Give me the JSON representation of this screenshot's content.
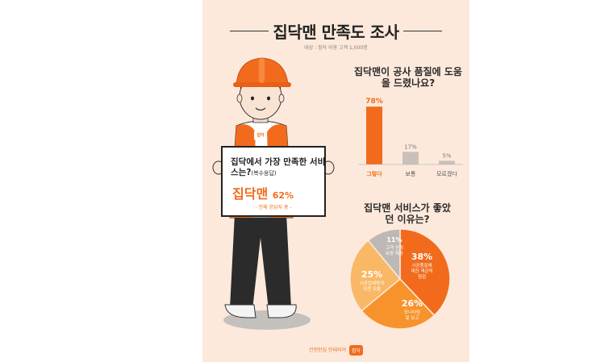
{
  "poster": {
    "title": "집닥맨 만족도 조사",
    "subtitle": "대상 : 집닥 이용 고객 1,000명",
    "footer_text": "건전안심 인테리어",
    "footer_badge": "집닥",
    "vest_badge": "집닥"
  },
  "sign": {
    "question": "집닥에서 가장 만족한 서비스는?",
    "question_suffix": "(복수응답)",
    "answer_name": "집닥맨",
    "answer_pct": "62%",
    "note": "- 전체 응답자 중 -"
  },
  "colors": {
    "accent": "#f26b1d",
    "bar_gray": "#c9c0ba",
    "background": "#fce9dc",
    "pie_colors": [
      "#f26b1d",
      "#f7932a",
      "#f9b866",
      "#bdb8b5"
    ]
  },
  "chart_data": [
    {
      "type": "bar",
      "title": "집닥맨이 공사 품질에 도움을 드렸나요?",
      "categories": [
        "그렇다",
        "보통",
        "모르겠다"
      ],
      "values": [
        78,
        17,
        5
      ],
      "value_labels": [
        "78%",
        "17%",
        "5%"
      ],
      "ylim": [
        0,
        100
      ],
      "grid": false
    },
    {
      "type": "pie",
      "title": "집닥맨 서비스가 좋았던 이유는?",
      "slices": [
        {
          "value": 38,
          "label": "38%",
          "desc": [
            "시공품질에",
            "대한 객관적",
            "점검"
          ]
        },
        {
          "value": 26,
          "label": "26%",
          "desc": [
            "모니터링",
            "및 보고"
          ]
        },
        {
          "value": 25,
          "label": "25%",
          "desc": [
            "시공업체와의",
            "의견 조율"
          ]
        },
        {
          "value": 11,
          "label": "11%",
          "desc": [
            "고객 신뢰",
            "보증 제공"
          ]
        }
      ]
    }
  ]
}
